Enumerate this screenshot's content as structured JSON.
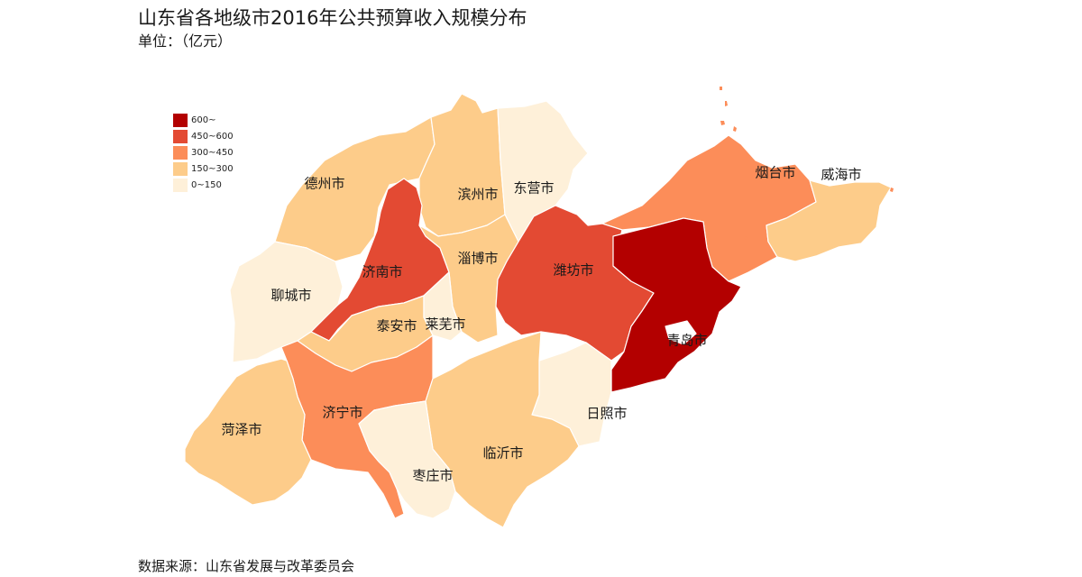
{
  "title": "山东省各地级市2016年公共预算收入规模分布",
  "subtitle": "单位：（亿元）",
  "source": "数据来源：山东省发展与改革委员会",
  "legend": [
    {
      "label": "600~",
      "color": "#b30000"
    },
    {
      "label": "450~600",
      "color": "#e34a33"
    },
    {
      "label": "300~450",
      "color": "#fc8d59"
    },
    {
      "label": "150~300",
      "color": "#fdcc8a"
    },
    {
      "label": "0~150",
      "color": "#fef0d9"
    }
  ],
  "cities": [
    {
      "name": "德州市",
      "bin": 3
    },
    {
      "name": "滨州市",
      "bin": 3
    },
    {
      "name": "东营市",
      "bin": 4
    },
    {
      "name": "烟台市",
      "bin": 2
    },
    {
      "name": "威海市",
      "bin": 3
    },
    {
      "name": "济南市",
      "bin": 1
    },
    {
      "name": "淄博市",
      "bin": 3
    },
    {
      "name": "潍坊市",
      "bin": 1
    },
    {
      "name": "聊城市",
      "bin": 4
    },
    {
      "name": "泰安市",
      "bin": 3
    },
    {
      "name": "莱芜市",
      "bin": 4
    },
    {
      "name": "青岛市",
      "bin": 0
    },
    {
      "name": "济宁市",
      "bin": 2
    },
    {
      "name": "日照市",
      "bin": 4
    },
    {
      "name": "菏泽市",
      "bin": 3
    },
    {
      "name": "临沂市",
      "bin": 3
    },
    {
      "name": "枣庄市",
      "bin": 4
    }
  ]
}
